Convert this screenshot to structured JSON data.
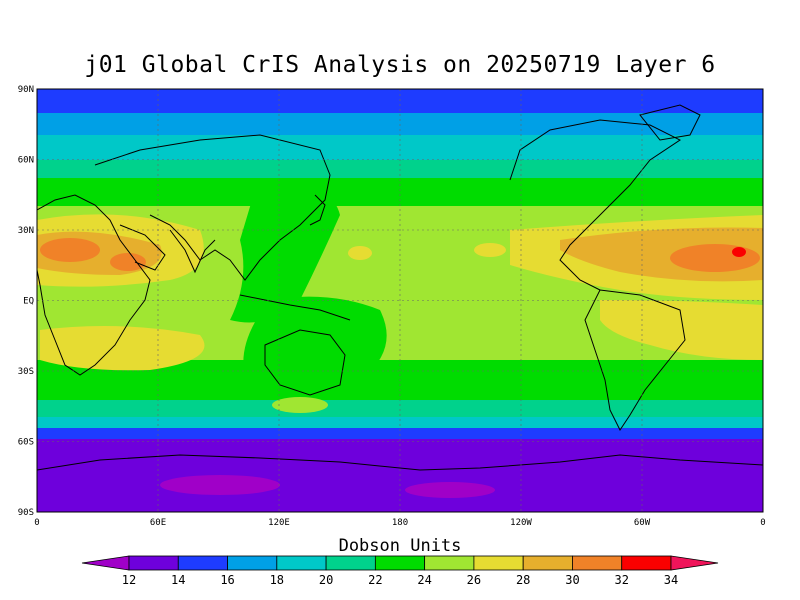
{
  "title": "j01 Global CrIS Analysis on 20250719 Layer 6",
  "colorbar": {
    "title": "Dobson Units",
    "levels": [
      12,
      14,
      16,
      18,
      20,
      22,
      24,
      26,
      28,
      30,
      32,
      34
    ],
    "labels": [
      "12",
      "14",
      "16",
      "18",
      "20",
      "22",
      "24",
      "26",
      "28",
      "30",
      "32",
      "34"
    ],
    "colors": [
      "#a000c8",
      "#6e00dc",
      "#1e3cff",
      "#00a0e6",
      "#00c8c8",
      "#00d28c",
      "#00dc00",
      "#a0e632",
      "#e6dc32",
      "#e6af2d",
      "#f08228",
      "#fa0000",
      "#f0145a"
    ]
  },
  "axes": {
    "lat_labels": [
      "90N",
      "60N",
      "30N",
      "EQ",
      "30S",
      "60S",
      "90S"
    ],
    "lon_labels": [
      "0",
      "60E",
      "120E",
      "180",
      "120W",
      "60W",
      "0"
    ]
  },
  "chart_data": {
    "type": "heatmap",
    "title": "j01 Global CrIS Analysis on 20250719 Layer 6",
    "colorbar_label": "Dobson Units",
    "lon_range": [
      0,
      360
    ],
    "lat_range": [
      -90,
      90
    ],
    "grid": true,
    "latitude_band_values": [
      {
        "lat": 85,
        "value": 15.5
      },
      {
        "lat": 75,
        "value": 17
      },
      {
        "lat": 65,
        "value": 19.5
      },
      {
        "lat": 55,
        "value": 22
      },
      {
        "lat": 45,
        "value": 24.5
      },
      {
        "lat": 35,
        "value": 25.5
      },
      {
        "lat": 25,
        "value": 26.5
      },
      {
        "lat": 15,
        "value": 27
      },
      {
        "lat": 5,
        "value": 25.5
      },
      {
        "lat": -5,
        "value": 25
      },
      {
        "lat": -15,
        "value": 25
      },
      {
        "lat": -25,
        "value": 24.5
      },
      {
        "lat": -35,
        "value": 23.5
      },
      {
        "lat": -42,
        "value": 21
      },
      {
        "lat": -50,
        "value": 18.5
      },
      {
        "lat": -57,
        "value": 15
      },
      {
        "lat": -70,
        "value": 13
      },
      {
        "lat": -85,
        "value": 13
      }
    ],
    "regional_features": [
      {
        "region": "North Atlantic / West Africa near 20N",
        "value": 31
      },
      {
        "region": "Arabia / NE Africa near 20N",
        "value": 29
      },
      {
        "region": "Western Pacific warm pool",
        "value": 23
      },
      {
        "region": "Indian Ocean subtropics",
        "value": 27
      },
      {
        "region": "Antarctic interior",
        "value": 12
      }
    ]
  }
}
